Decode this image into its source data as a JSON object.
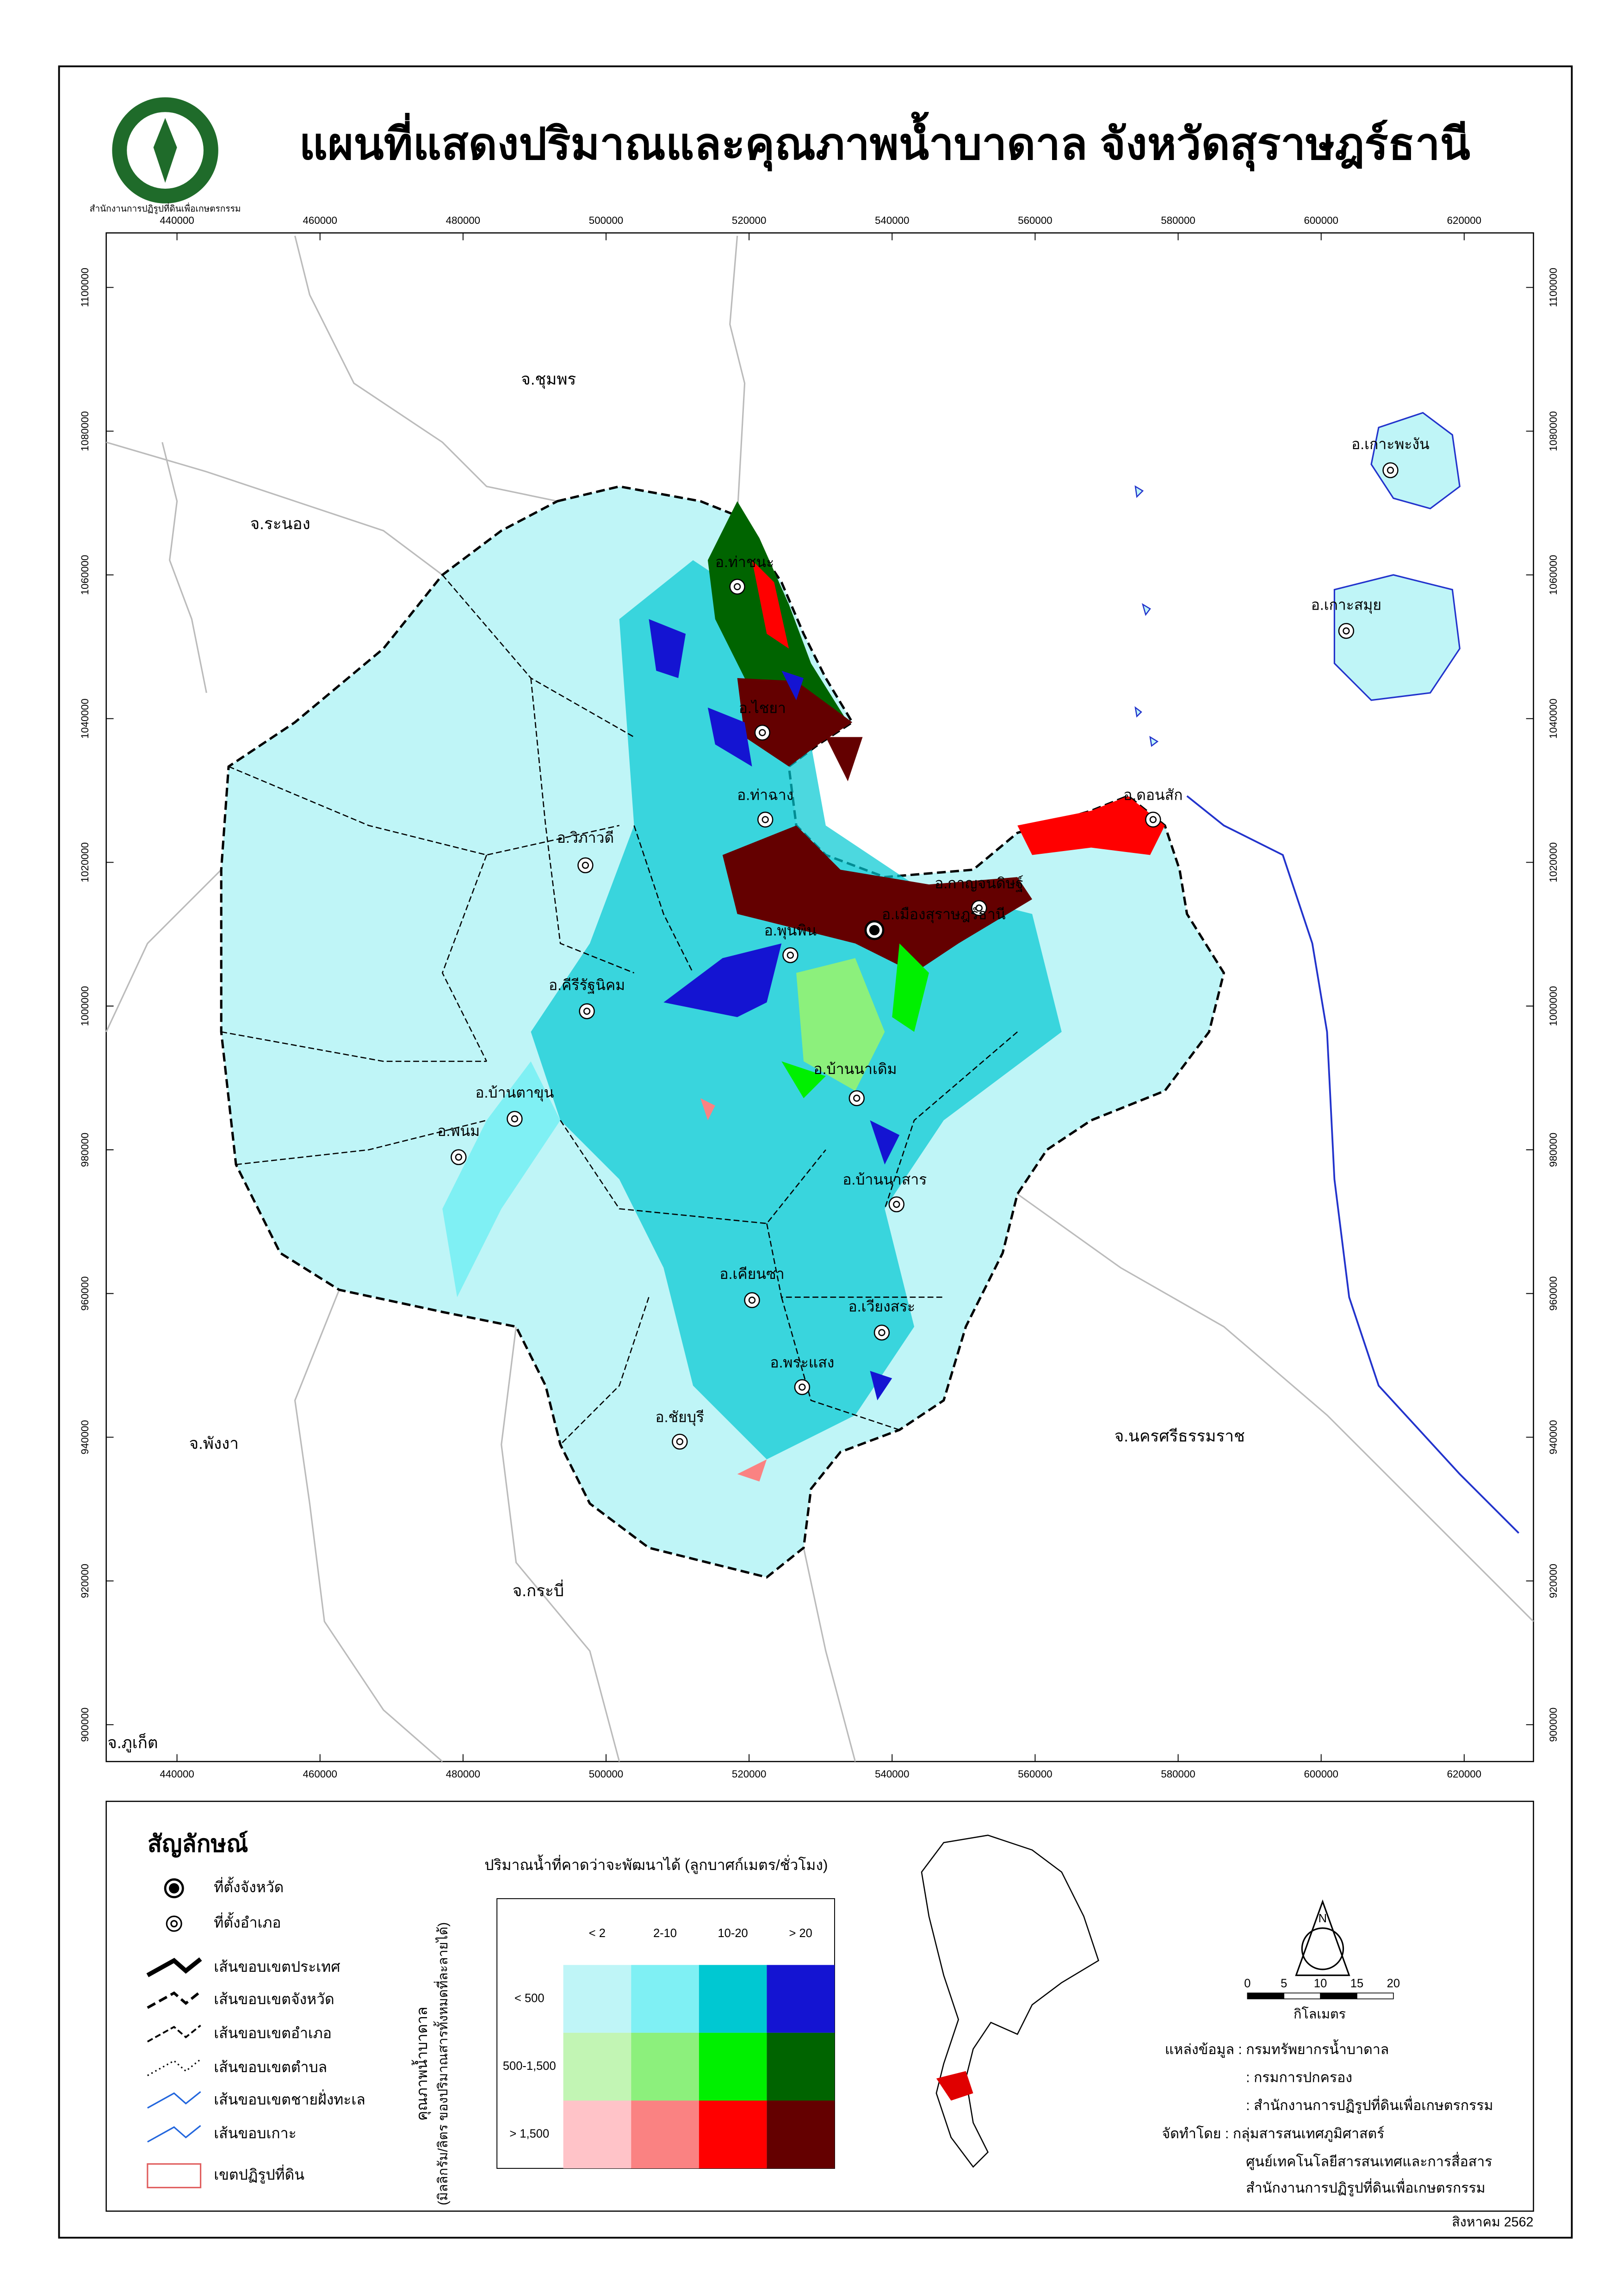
{
  "header": {
    "title": "แผนที่แสดงปริมาณและคุณภาพน้ำบาดาล จังหวัดสุราษฎร์ธานี",
    "logo_text": "สำนักงานการปฏิรูปที่ดินเพื่อเกษตรกรรม"
  },
  "map": {
    "x_ticks": [
      440000,
      460000,
      480000,
      500000,
      520000,
      540000,
      560000,
      580000,
      600000,
      620000
    ],
    "y_ticks": [
      900000,
      920000,
      940000,
      960000,
      980000,
      1000000,
      1020000,
      1040000,
      1060000,
      1080000,
      1100000
    ],
    "provinces": [
      "จ.ชุมพร",
      "จ.ระนอง",
      "จ.พังงา",
      "จ.กระบี่",
      "จ.นครศรีธรรมราช",
      "จ.ภูเก็ต"
    ],
    "districts": [
      "อ.ท่าชนะ",
      "อ.ไชยา",
      "อ.ท่าฉาง",
      "อ.วิภาวดี",
      "อ.กาญจนดิษฐ์",
      "อ.ดอนสัก",
      "อ.เมืองสุราษฎร์ธานี",
      "อ.พุนพิน",
      "อ.คีรีรัฐนิคม",
      "อ.บ้านตาขุน",
      "อ.พนม",
      "อ.บ้านนาเดิม",
      "อ.บ้านนาสาร",
      "อ.เคียนซา",
      "อ.เวียงสระ",
      "อ.พระแสง",
      "อ.ชัยบุรี",
      "อ.เกาะพะงัน",
      "อ.เกาะสมุย"
    ]
  },
  "legend": {
    "title": "สัญลักษณ์",
    "items": [
      "ที่ตั้งจังหวัด",
      "ที่ตั้งอำเภอ",
      "เส้นขอบเขตประเทศ",
      "เส้นขอบเขตจังหวัด",
      "เส้นขอบเขตอำเภอ",
      "เส้นขอบเขตตำบล",
      "เส้นขอบเขตชายฝั่งทะเล",
      "เส้นขอบเกาะ",
      "เขตปฏิรูปที่ดิน"
    ]
  },
  "matrix": {
    "column_title": "ปริมาณน้ำที่คาดว่าจะพัฒนาได้ (ลูกบาศก์เมตร/ชั่วโมง)",
    "row_title": "คุณภาพน้ำบาดาล",
    "row_subtitle": "(มิลลิกรัม/ลิตร ของปริมาณสารทั้งหมดที่ละลายได้)",
    "columns": [
      "< 2",
      "2-10",
      "10-20",
      "> 20"
    ],
    "rows": [
      "< 500",
      "500-1,500",
      "> 1,500"
    ],
    "colors": [
      [
        "#bff5f7",
        "#7ff0f4",
        "#00c8d2",
        "#1414d2"
      ],
      [
        "#c2f5b4",
        "#8cf07c",
        "#00f000",
        "#006400"
      ],
      [
        "#ffc3c8",
        "#fa8282",
        "#ff0000",
        "#640000"
      ]
    ]
  },
  "scale": {
    "ticks": [
      0,
      5,
      10,
      15,
      20
    ],
    "unit": "กิโลเมตร"
  },
  "north": "N",
  "credits": [
    "แหล่งข้อมูล : กรมทรัพยากรน้ำบาดาล",
    ": กรมการปกครอง",
    ": สำนักงานการปฏิรูปที่ดินเพื่อเกษตรกรรม",
    "จัดทำโดย : กลุ่มสารสนเทศภูมิศาสตร์",
    "ศูนย์เทคโนโลยีสารสนเทศและการสื่อสาร",
    "สำนักงานการปฏิรูปที่ดินเพื่อเกษตรกรรม"
  ],
  "date": "สิงหาคม 2562"
}
